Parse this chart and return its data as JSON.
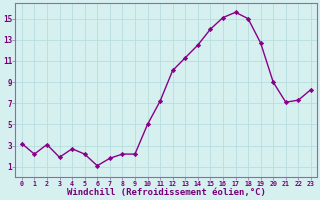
{
  "x": [
    0,
    1,
    2,
    3,
    4,
    5,
    6,
    7,
    8,
    9,
    10,
    11,
    12,
    13,
    14,
    15,
    16,
    17,
    18,
    19,
    20,
    21,
    22,
    23
  ],
  "y": [
    3.2,
    2.2,
    3.1,
    1.9,
    2.7,
    2.2,
    1.1,
    1.8,
    2.2,
    2.2,
    5.0,
    7.2,
    10.1,
    11.3,
    12.5,
    14.0,
    15.1,
    15.6,
    15.0,
    12.7,
    9.0,
    7.1,
    7.3,
    8.3
  ],
  "line_color": "#880088",
  "marker": "D",
  "marker_size": 2.2,
  "line_width": 1.0,
  "xlabel": "Windchill (Refroidissement éolien,°C)",
  "xlabel_fontsize": 6.5,
  "ylabel_ticks": [
    1,
    3,
    5,
    7,
    9,
    11,
    13,
    15
  ],
  "xtick_labels": [
    "0",
    "1",
    "2",
    "3",
    "4",
    "5",
    "6",
    "7",
    "8",
    "9",
    "10",
    "11",
    "12",
    "13",
    "14",
    "15",
    "16",
    "17",
    "18",
    "19",
    "20",
    "21",
    "22",
    "23"
  ],
  "ylim": [
    0.0,
    16.5
  ],
  "xlim": [
    -0.5,
    23.5
  ],
  "bg_color": "#d6f0f0",
  "grid_color": "#b8dde0",
  "tick_color": "#770077",
  "spine_color": "#9966aa"
}
